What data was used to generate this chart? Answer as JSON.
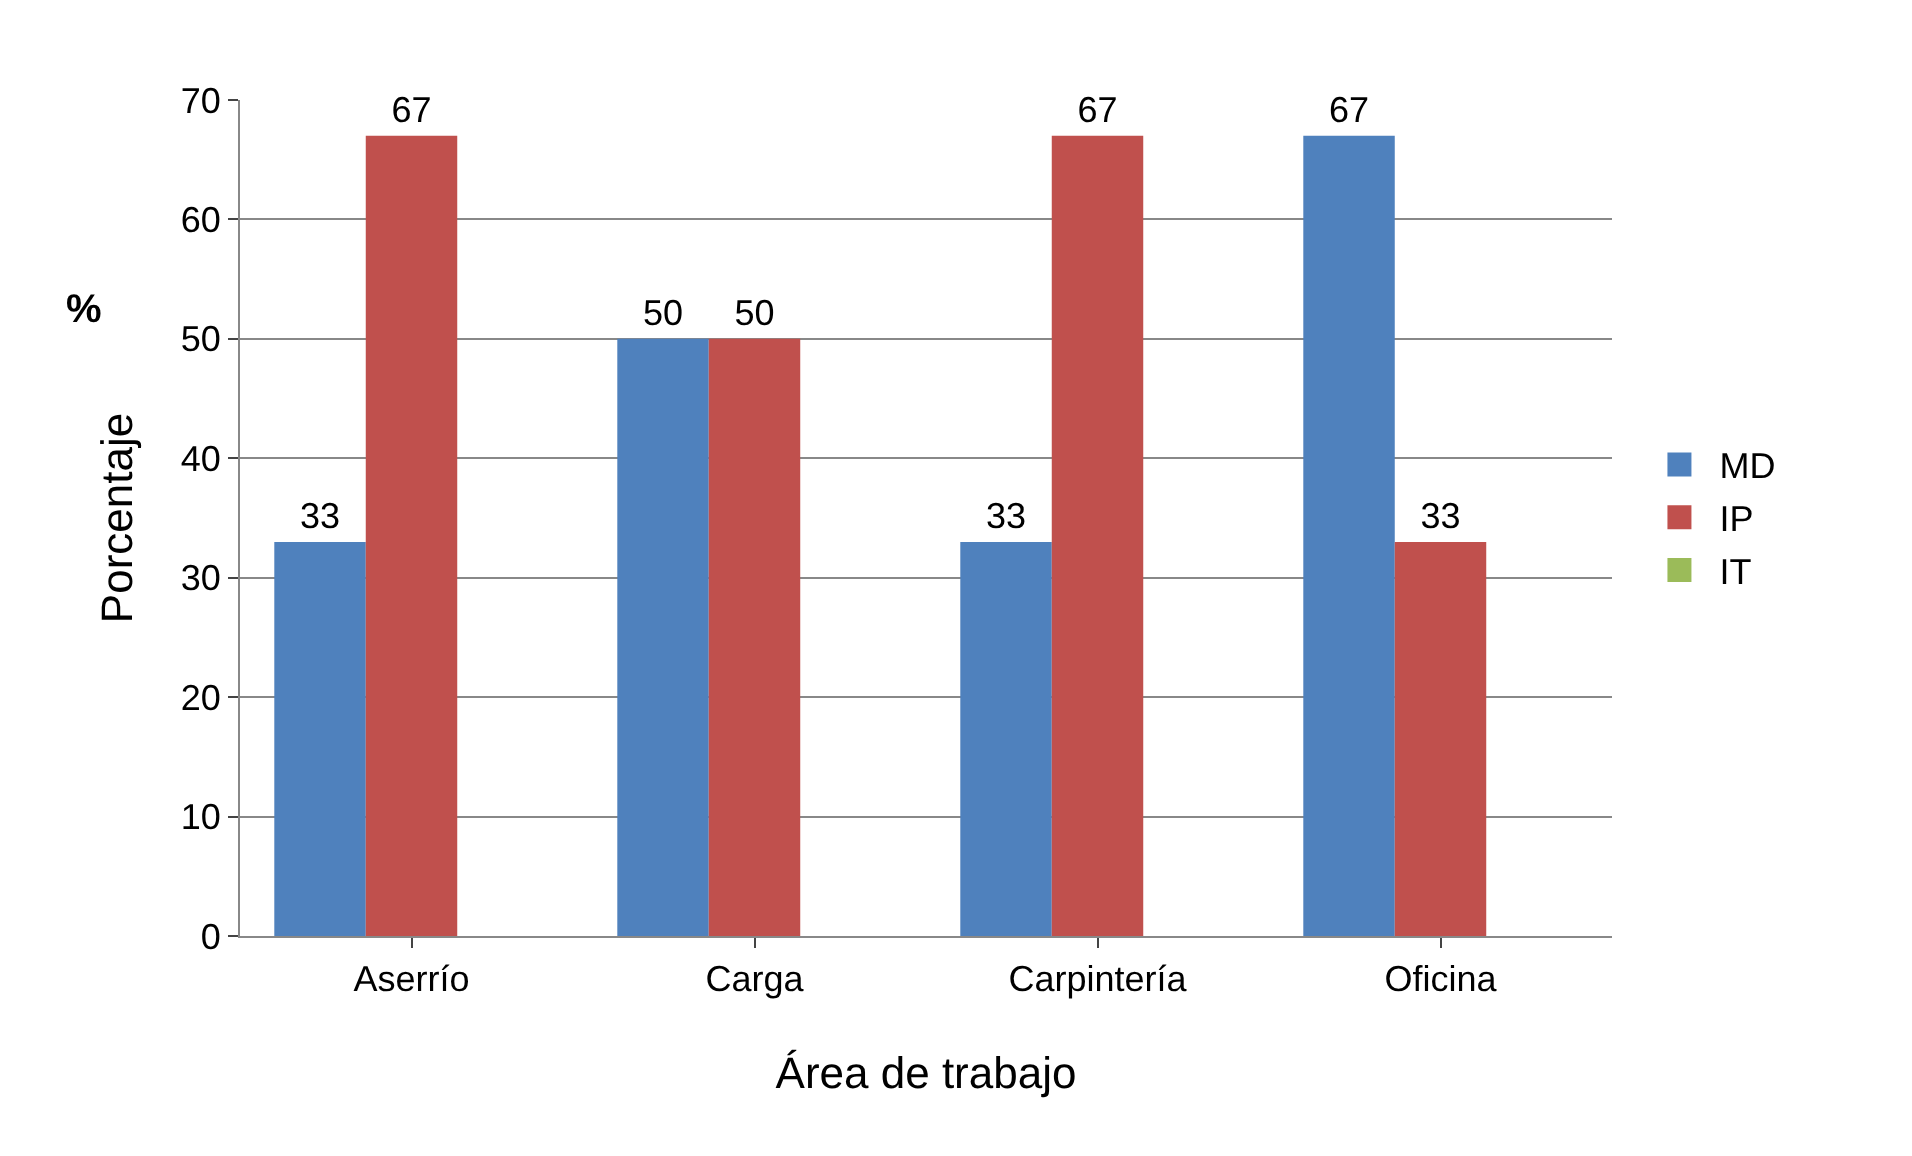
{
  "chart_data": {
    "type": "bar",
    "xlabel": "Área de trabajo",
    "ylabel": "Porcentaje",
    "annotations": [
      "%"
    ],
    "categories": [
      "Aserrío",
      "Carga",
      "Carpintería",
      "Oficina"
    ],
    "series": [
      {
        "name": "MD",
        "color": "#4f81bd",
        "values": [
          33,
          50,
          33,
          67
        ]
      },
      {
        "name": "IP",
        "color": "#c0504d",
        "values": [
          67,
          50,
          67,
          33
        ]
      },
      {
        "name": "IT",
        "color": "#9bbb59",
        "values": [
          null,
          null,
          null,
          null
        ]
      }
    ],
    "ylim": [
      0,
      70
    ],
    "yticks": [
      0,
      10,
      20,
      30,
      40,
      50,
      60,
      70
    ],
    "grid": "y",
    "legend": "right",
    "data_labels": true
  }
}
